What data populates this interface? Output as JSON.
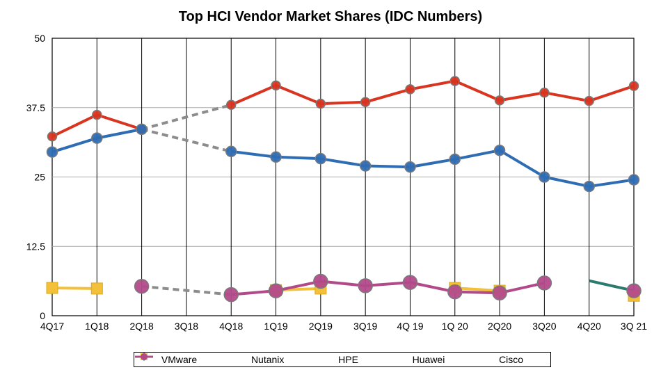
{
  "chart_data": {
    "type": "line",
    "title": "Top HCI Vendor Market Shares (IDC Numbers)",
    "xlabel": "",
    "ylabel": "",
    "categories": [
      "4Q17",
      "1Q18",
      "2Q18",
      "3Q18",
      "4Q18",
      "1Q19",
      "2Q19",
      "3Q19",
      "4Q 19",
      "1Q 20",
      "2Q20",
      "3Q20",
      "4Q20",
      "3Q 21"
    ],
    "ylim": [
      0,
      50
    ],
    "yticks": [
      "0",
      "12.5",
      "25",
      "37.5",
      "50"
    ],
    "grid": true,
    "legend_position": "bottom",
    "series": [
      {
        "name": "VMware",
        "color": "#d9341f",
        "marker": "circle",
        "values": [
          32.3,
          36.2,
          33.6,
          null,
          38.0,
          41.5,
          38.2,
          38.5,
          40.8,
          42.3,
          38.8,
          40.2,
          38.7,
          41.4
        ]
      },
      {
        "name": "Nutanix",
        "color": "#2e6db4",
        "marker": "circle",
        "values": [
          29.5,
          32.0,
          33.6,
          null,
          29.6,
          28.6,
          28.3,
          27.0,
          26.8,
          28.2,
          29.8,
          25.0,
          23.3,
          24.5
        ]
      },
      {
        "name": "HPE",
        "color": "#f2c139",
        "marker": "square",
        "values": [
          5.0,
          4.9,
          null,
          null,
          null,
          4.6,
          4.9,
          null,
          null,
          5.0,
          4.5,
          null,
          null,
          3.6
        ]
      },
      {
        "name": "Huawei",
        "color": "#2a7a6e",
        "marker": "diamond",
        "values": [
          null,
          null,
          null,
          null,
          null,
          null,
          null,
          null,
          null,
          null,
          null,
          null,
          6.3,
          4.5
        ]
      },
      {
        "name": "Cisco",
        "color": "#b24a8a",
        "marker": "circle",
        "values": [
          null,
          null,
          5.3,
          null,
          3.8,
          4.5,
          6.2,
          5.4,
          6.0,
          4.3,
          4.1,
          5.9,
          null,
          4.5
        ]
      }
    ],
    "gap_connectors": [
      {
        "from": "2Q18",
        "to": "4Q18",
        "series": "VMware",
        "color": "#8c8c8c"
      },
      {
        "from": "2Q18",
        "to": "4Q18",
        "series": "Nutanix",
        "color": "#8c8c8c"
      },
      {
        "from": "2Q18",
        "to": "4Q18",
        "series": "Cisco",
        "color": "#8c8c8c"
      }
    ]
  }
}
